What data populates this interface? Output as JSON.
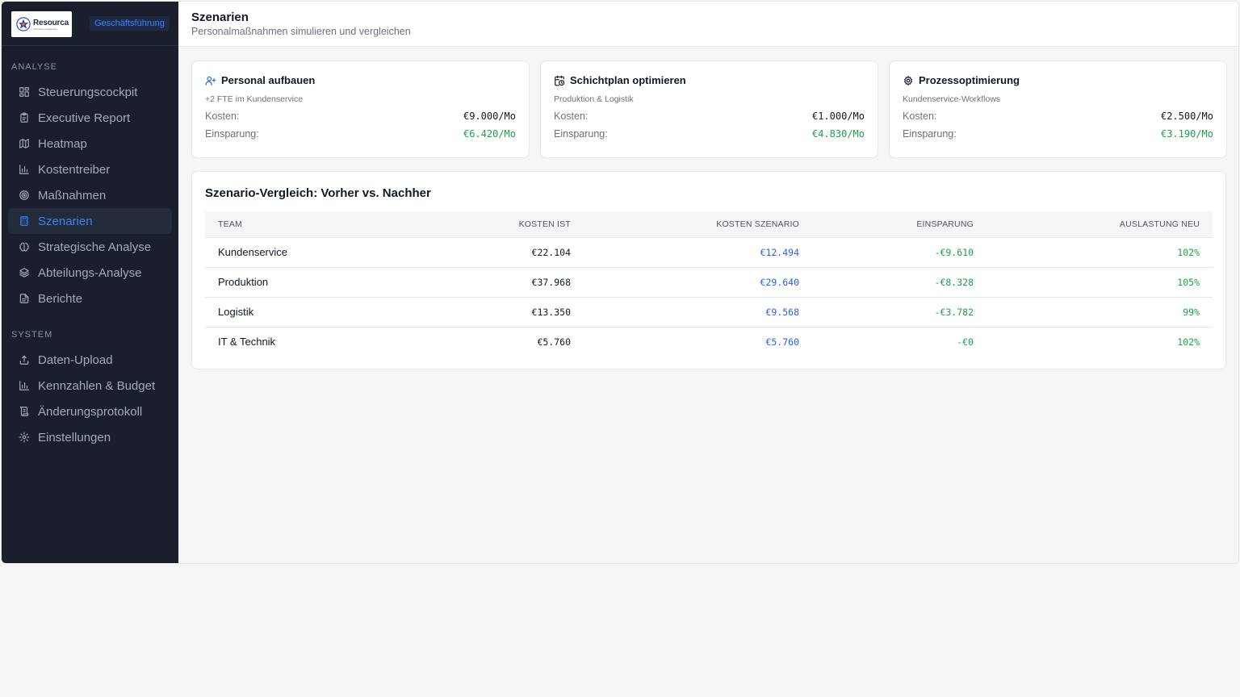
{
  "brand": {
    "logo_name": "Resourca",
    "logo_tag": "Workforce Intelligence",
    "role": "Geschäftsführung"
  },
  "sidebar": {
    "analyse_label": "ANALYSE",
    "system_label": "SYSTEM",
    "analyse_items": [
      {
        "label": "Steuerungscockpit",
        "icon": "layout-grid-icon"
      },
      {
        "label": "Executive Report",
        "icon": "clipboard-icon"
      },
      {
        "label": "Heatmap",
        "icon": "map-icon"
      },
      {
        "label": "Kostentreiber",
        "icon": "bar-chart-icon"
      },
      {
        "label": "Maßnahmen",
        "icon": "target-icon"
      },
      {
        "label": "Szenarien",
        "icon": "calculator-icon",
        "active": true
      },
      {
        "label": "Strategische Analyse",
        "icon": "brain-icon"
      },
      {
        "label": "Abteilungs-Analyse",
        "icon": "layers-icon"
      },
      {
        "label": "Berichte",
        "icon": "file-text-icon"
      }
    ],
    "system_items": [
      {
        "label": "Daten-Upload",
        "icon": "upload-icon"
      },
      {
        "label": "Kennzahlen & Budget",
        "icon": "bar-chart-icon"
      },
      {
        "label": "Änderungsprotokoll",
        "icon": "scroll-icon"
      },
      {
        "label": "Einstellungen",
        "icon": "settings-icon"
      }
    ]
  },
  "header": {
    "title": "Szenarien",
    "subtitle": "Personalmaßnahmen simulieren und vergleichen"
  },
  "cards": [
    {
      "title": "Personal aufbauen",
      "sub": "+2 FTE im Kundenservice",
      "cost_label": "Kosten:",
      "cost": "€9.000/Mo",
      "save_label": "Einsparung:",
      "save": "€6.420/Mo",
      "icon": "user-plus-icon",
      "icon_color": "#2563eb"
    },
    {
      "title": "Schichtplan optimieren",
      "sub": "Produktion & Logistik",
      "cost_label": "Kosten:",
      "cost": "€1.000/Mo",
      "save_label": "Einsparung:",
      "save": "€4.830/Mo",
      "icon": "calendar-clock-icon",
      "icon_color": "#111827"
    },
    {
      "title": "Prozessoptimierung",
      "sub": "Kundenservice-Workflows",
      "cost_label": "Kosten:",
      "cost": "€2.500/Mo",
      "save_label": "Einsparung:",
      "save": "€3.190/Mo",
      "icon": "gear-icon",
      "icon_color": "#111827"
    }
  ],
  "comparison": {
    "title": "Szenario-Vergleich: Vorher vs. Nachher",
    "columns": [
      "TEAM",
      "KOSTEN IST",
      "KOSTEN SZENARIO",
      "EINSPARUNG",
      "AUSLASTUNG NEU"
    ],
    "rows": [
      {
        "team": "Kundenservice",
        "ist": "€22.104",
        "szenario": "€12.494",
        "einsparung": "-€9.610",
        "auslastung": "102%"
      },
      {
        "team": "Produktion",
        "ist": "€37.968",
        "szenario": "€29.640",
        "einsparung": "-€8.328",
        "auslastung": "105%"
      },
      {
        "team": "Logistik",
        "ist": "€13.350",
        "szenario": "€9.568",
        "einsparung": "-€3.782",
        "auslastung": "99%"
      },
      {
        "team": "IT & Technik",
        "ist": "€5.760",
        "szenario": "€5.760",
        "einsparung": "-€0",
        "auslastung": "102%"
      }
    ]
  },
  "colors": {
    "sidebar_bg": "#1a1f2b",
    "accent": "#3b82f6",
    "positive": "#16a34a",
    "scenario": "#2563eb"
  }
}
